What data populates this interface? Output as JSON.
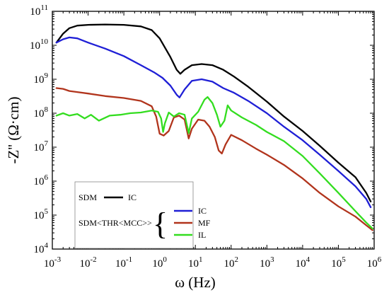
{
  "chart_data": {
    "type": "line",
    "title": "",
    "xlabel": "ω (Hz)",
    "ylabel": "-Z'' (Ω·cm)",
    "x_scale": "log",
    "y_scale": "log",
    "xlim": [
      0.001,
      1000000
    ],
    "ylim": [
      10000,
      100000000000
    ],
    "grid": false,
    "x_ticks": [
      {
        "mant": "10",
        "exp": "-3"
      },
      {
        "mant": "10",
        "exp": "-2"
      },
      {
        "mant": "10",
        "exp": "-1"
      },
      {
        "mant": "10",
        "exp": "0"
      },
      {
        "mant": "10",
        "exp": "1"
      },
      {
        "mant": "10",
        "exp": "2"
      },
      {
        "mant": "10",
        "exp": "3"
      },
      {
        "mant": "10",
        "exp": "4"
      },
      {
        "mant": "10",
        "exp": "5"
      },
      {
        "mant": "10",
        "exp": "6"
      }
    ],
    "y_ticks": [
      {
        "mant": "10",
        "exp": "4"
      },
      {
        "mant": "10",
        "exp": "5"
      },
      {
        "mant": "10",
        "exp": "6"
      },
      {
        "mant": "10",
        "exp": "7"
      },
      {
        "mant": "10",
        "exp": "8"
      },
      {
        "mant": "10",
        "exp": "9"
      },
      {
        "mant": "10",
        "exp": "10"
      },
      {
        "mant": "10",
        "exp": "11"
      }
    ],
    "legend": {
      "placement": "bottom-left",
      "group1": "SDM",
      "group2": "SDM<THR<MCC>>",
      "brace": "{"
    },
    "series": [
      {
        "name": "IC",
        "group": "SDM",
        "color": "#000000",
        "points": [
          [
            0.0013,
            12000000000.0
          ],
          [
            0.002,
            22000000000.0
          ],
          [
            0.003,
            32000000000.0
          ],
          [
            0.005,
            38000000000.0
          ],
          [
            0.01,
            40000000000.0
          ],
          [
            0.03,
            41000000000.0
          ],
          [
            0.1,
            40000000000.0
          ],
          [
            0.3,
            36000000000.0
          ],
          [
            0.6,
            28000000000.0
          ],
          [
            1.0,
            16000000000.0
          ],
          [
            2.0,
            4500000000.0
          ],
          [
            3.0,
            1900000000.0
          ],
          [
            3.8,
            1450000000.0
          ],
          [
            5.0,
            1900000000.0
          ],
          [
            8.0,
            2600000000.0
          ],
          [
            15,
            2800000000.0
          ],
          [
            30,
            2600000000.0
          ],
          [
            60,
            1900000000.0
          ],
          [
            120,
            1200000000.0
          ],
          [
            300,
            600000000.0
          ],
          [
            1000,
            220000000.0
          ],
          [
            3000,
            80000000.0
          ],
          [
            10000,
            30000000.0
          ],
          [
            30000,
            11000000.0
          ],
          [
            100000,
            3500000.0
          ],
          [
            300000,
            1300000.0
          ],
          [
            600000,
            450000.0
          ],
          [
            800000,
            250000.0
          ]
        ]
      },
      {
        "name": "IC",
        "group": "SDM<THR<MCC>>",
        "color": "#1f1fd6",
        "points": [
          [
            0.0013,
            12000000000.0
          ],
          [
            0.002,
            15000000000.0
          ],
          [
            0.003,
            17000000000.0
          ],
          [
            0.005,
            16000000000.0
          ],
          [
            0.01,
            12000000000.0
          ],
          [
            0.03,
            8000000000.0
          ],
          [
            0.1,
            4800000000.0
          ],
          [
            0.3,
            2600000000.0
          ],
          [
            0.7,
            1600000000.0
          ],
          [
            1.2,
            1100000000.0
          ],
          [
            2.0,
            650000000.0
          ],
          [
            3.0,
            350000000.0
          ],
          [
            3.6,
            290000000.0
          ],
          [
            5.0,
            500000000.0
          ],
          [
            8.0,
            900000000.0
          ],
          [
            15,
            1000000000.0
          ],
          [
            30,
            850000000.0
          ],
          [
            60,
            550000000.0
          ],
          [
            120,
            400000000.0
          ],
          [
            300,
            230000000.0
          ],
          [
            1000,
            100000000.0
          ],
          [
            3000,
            40000000.0
          ],
          [
            10000,
            16000000.0
          ],
          [
            30000,
            6000000.0
          ],
          [
            100000,
            2000000.0
          ],
          [
            300000,
            700000.0
          ],
          [
            600000,
            300000.0
          ],
          [
            800000,
            170000.0
          ]
        ]
      },
      {
        "name": "MF",
        "group": "SDM<THR<MCC>>",
        "color": "#b1341c",
        "points": [
          [
            0.0013,
            550000000.0
          ],
          [
            0.002,
            520000000.0
          ],
          [
            0.003,
            450000000.0
          ],
          [
            0.005,
            420000000.0
          ],
          [
            0.01,
            380000000.0
          ],
          [
            0.03,
            320000000.0
          ],
          [
            0.1,
            280000000.0
          ],
          [
            0.3,
            230000000.0
          ],
          [
            0.6,
            160000000.0
          ],
          [
            0.8,
            80000000.0
          ],
          [
            1.0,
            25000000.0
          ],
          [
            1.3,
            22000000.0
          ],
          [
            1.8,
            30000000.0
          ],
          [
            2.5,
            75000000.0
          ],
          [
            3.5,
            85000000.0
          ],
          [
            5.0,
            65000000.0
          ],
          [
            6.5,
            18000000.0
          ],
          [
            8.0,
            35000000.0
          ],
          [
            12,
            65000000.0
          ],
          [
            18,
            60000000.0
          ],
          [
            25,
            40000000.0
          ],
          [
            35,
            20000000.0
          ],
          [
            45,
            8000000.0
          ],
          [
            55,
            6500000.0
          ],
          [
            70,
            12000000.0
          ],
          [
            100,
            23000000.0
          ],
          [
            200,
            16000000.0
          ],
          [
            500,
            9000000.0
          ],
          [
            1000,
            6000000.0
          ],
          [
            3000,
            3000000.0
          ],
          [
            10000,
            1200000.0
          ],
          [
            30000,
            450000.0
          ],
          [
            100000,
            180000.0
          ],
          [
            300000,
            90000.0
          ],
          [
            600000,
            50000.0
          ],
          [
            900000,
            36000.0
          ]
        ]
      },
      {
        "name": "IL",
        "group": "SDM<THR<MCC>>",
        "color": "#33dd1f",
        "points": [
          [
            0.0013,
            85000000.0
          ],
          [
            0.002,
            100000000.0
          ],
          [
            0.003,
            85000000.0
          ],
          [
            0.005,
            95000000.0
          ],
          [
            0.008,
            70000000.0
          ],
          [
            0.012,
            90000000.0
          ],
          [
            0.02,
            60000000.0
          ],
          [
            0.04,
            85000000.0
          ],
          [
            0.08,
            90000000.0
          ],
          [
            0.15,
            100000000.0
          ],
          [
            0.3,
            105000000.0
          ],
          [
            0.6,
            120000000.0
          ],
          [
            0.9,
            110000000.0
          ],
          [
            1.1,
            70000000.0
          ],
          [
            1.25,
            28000000.0
          ],
          [
            1.4,
            50000000.0
          ],
          [
            1.8,
            105000000.0
          ],
          [
            2.5,
            80000000.0
          ],
          [
            3.5,
            100000000.0
          ],
          [
            5.0,
            90000000.0
          ],
          [
            6.5,
            26000000.0
          ],
          [
            8.0,
            70000000.0
          ],
          [
            12,
            110000000.0
          ],
          [
            18,
            250000000.0
          ],
          [
            22,
            300000000.0
          ],
          [
            30,
            200000000.0
          ],
          [
            40,
            90000000.0
          ],
          [
            50,
            40000000.0
          ],
          [
            65,
            60000000.0
          ],
          [
            80,
            170000000.0
          ],
          [
            100,
            120000000.0
          ],
          [
            200,
            75000000.0
          ],
          [
            500,
            45000000.0
          ],
          [
            1000,
            28000000.0
          ],
          [
            3000,
            15000000.0
          ],
          [
            10000,
            5500000.0
          ],
          [
            30000,
            1700000.0
          ],
          [
            100000,
            450000.0
          ],
          [
            300000,
            130000.0
          ],
          [
            600000,
            60000.0
          ],
          [
            900000,
            40000.0
          ]
        ]
      }
    ]
  }
}
